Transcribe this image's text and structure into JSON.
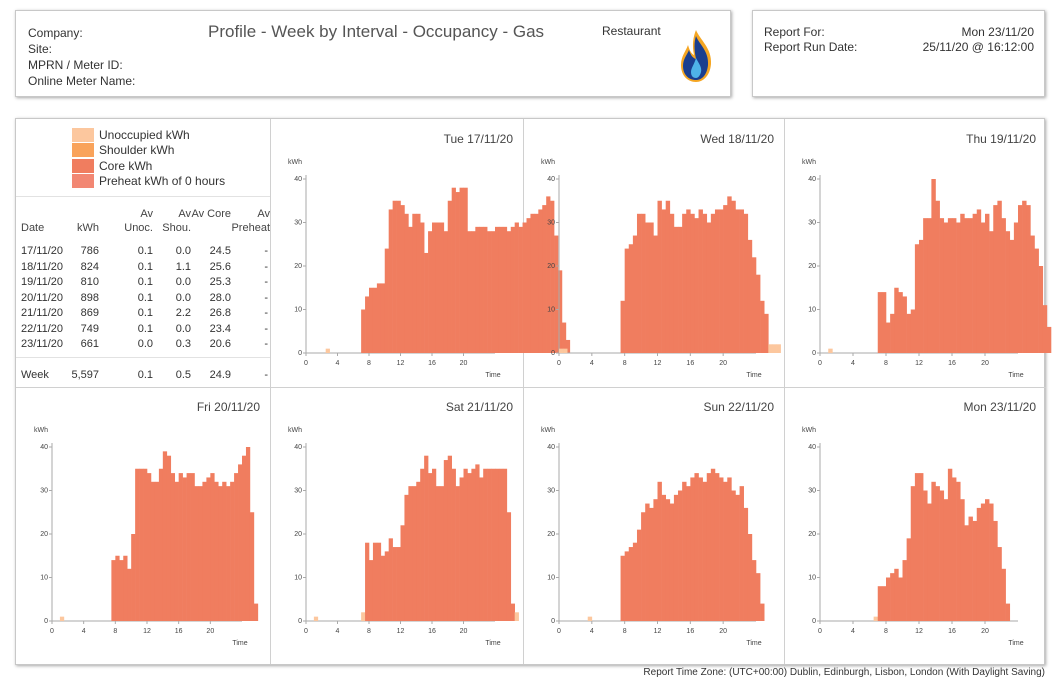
{
  "header": {
    "company_label": "Company:",
    "site_label": "Site:",
    "mprn_label": "MPRN / Meter ID:",
    "online_name_label": "Online Meter Name:",
    "title": "Profile - Week by Interval - Occupancy - Gas",
    "site_type": "Restaurant",
    "logo_icon": "gas-flame-icon"
  },
  "report_info": {
    "report_for_label": "Report For:",
    "report_for_value": "Mon 23/11/20",
    "run_date_label": "Report Run Date:",
    "run_date_value": "25/11/20 @ 16:12:00"
  },
  "legend": [
    {
      "label": "Unoccupied kWh",
      "color": "#fcc79e"
    },
    {
      "label": "Shoulder kWh",
      "color": "#f9a35b"
    },
    {
      "label": "Core kWh",
      "color": "#f07d5f"
    },
    {
      "label": "Preheat kWh of 0 hours",
      "color": "#f28773"
    }
  ],
  "table": {
    "headers": [
      "Date",
      "kWh",
      "Av Unoc.",
      "Av Shou.",
      "Av Core",
      "Av Preheat"
    ],
    "rows": [
      [
        "17/11/20",
        "786",
        "0.1",
        "0.0",
        "24.5",
        "-"
      ],
      [
        "18/11/20",
        "824",
        "0.1",
        "1.1",
        "25.6",
        "-"
      ],
      [
        "19/11/20",
        "810",
        "0.1",
        "0.0",
        "25.3",
        "-"
      ],
      [
        "20/11/20",
        "898",
        "0.1",
        "0.0",
        "28.0",
        "-"
      ],
      [
        "21/11/20",
        "869",
        "0.1",
        "2.2",
        "26.8",
        "-"
      ],
      [
        "22/11/20",
        "749",
        "0.1",
        "0.0",
        "23.4",
        "-"
      ],
      [
        "23/11/20",
        "661",
        "0.0",
        "0.3",
        "20.6",
        "-"
      ]
    ],
    "total": [
      "Week",
      "5,597",
      "0.1",
      "0.5",
      "24.9",
      "-"
    ]
  },
  "colors": {
    "unoccupied": "#fcc79e",
    "shoulder": "#f9a35b",
    "core": "#f07d5f",
    "axis": "#aaaaaa"
  },
  "chart_data": [
    {
      "type": "bar",
      "title": "Tue 17/11/20",
      "ylabel": "kWh",
      "xlabel": "Time",
      "ylim": [
        0,
        40
      ],
      "yticks": [
        0,
        10,
        20,
        30,
        40
      ],
      "xticks": [
        0,
        4,
        8,
        12,
        16,
        20
      ],
      "xlim": [
        0,
        24
      ],
      "values": [
        0,
        0,
        0,
        0,
        0,
        1,
        0,
        0,
        0,
        0,
        0,
        0,
        0,
        0,
        10,
        13,
        15,
        15,
        16,
        16,
        24,
        33,
        35,
        35,
        34,
        32,
        29,
        32,
        32,
        30,
        23,
        28,
        30,
        30,
        30,
        28,
        35,
        38,
        37,
        38,
        38,
        28,
        28,
        29,
        29,
        29,
        28,
        28,
        29,
        29,
        29,
        28,
        29,
        30,
        29,
        30,
        31,
        32,
        32,
        33,
        34,
        36,
        35,
        27,
        19,
        7,
        3
      ],
      "x_values_hours": "30-minute intervals from 00:00",
      "unoccupied": [
        0,
        0,
        0,
        0,
        0,
        1,
        0,
        0,
        0,
        0,
        0,
        0,
        0,
        0,
        0,
        0,
        0,
        0,
        0,
        0,
        0,
        0,
        0,
        0,
        0,
        0,
        0,
        0,
        0,
        0,
        0,
        0,
        0,
        0,
        0,
        0,
        0,
        0,
        0,
        0,
        0,
        0,
        0,
        0,
        0,
        0,
        0,
        0,
        0,
        0,
        0,
        0,
        0,
        0,
        0,
        0,
        0,
        0,
        0,
        0,
        0,
        0,
        0,
        0,
        0,
        0,
        0
      ]
    },
    {
      "type": "bar",
      "title": "Wed 18/11/20",
      "ylabel": "kWh",
      "xlabel": "Time",
      "ylim": [
        0,
        40
      ],
      "yticks": [
        0,
        10,
        20,
        30,
        40
      ],
      "xticks": [
        0,
        4,
        8,
        12,
        16,
        20
      ],
      "xlim": [
        0,
        24
      ],
      "values": [
        1,
        1,
        0,
        0,
        0,
        0,
        0,
        0,
        0,
        0,
        0,
        0,
        0,
        0,
        0,
        12,
        24,
        25,
        27,
        32,
        32,
        30,
        30,
        27,
        35,
        33,
        35,
        32,
        29,
        29,
        32,
        33,
        32,
        31,
        33,
        32,
        30,
        32,
        33,
        33,
        34,
        36,
        35,
        33,
        33,
        32,
        26,
        22,
        18,
        12,
        9,
        2,
        2,
        2
      ]
    },
    {
      "type": "bar",
      "title": "Thu 19/11/20",
      "ylabel": "kWh",
      "xlabel": "Time",
      "ylim": [
        0,
        40
      ],
      "yticks": [
        0,
        10,
        20,
        30,
        40
      ],
      "xticks": [
        0,
        4,
        8,
        12,
        16,
        20
      ],
      "xlim": [
        0,
        24
      ],
      "values": [
        0,
        0,
        1,
        0,
        0,
        0,
        0,
        0,
        0,
        0,
        0,
        0,
        0,
        0,
        14,
        14,
        7,
        9,
        15,
        14,
        13,
        9,
        10,
        25,
        26,
        31,
        31,
        40,
        35,
        31,
        30,
        31,
        31,
        30,
        32,
        31,
        31,
        32,
        33,
        30,
        32,
        28,
        34,
        35,
        31,
        28,
        26,
        30,
        34,
        35,
        34,
        27,
        24,
        20,
        11,
        6
      ]
    },
    {
      "type": "bar",
      "title": "Fri 20/11/20",
      "ylabel": "kWh",
      "xlabel": "Time",
      "ylim": [
        0,
        40
      ],
      "yticks": [
        0,
        10,
        20,
        30,
        40
      ],
      "xticks": [
        0,
        4,
        8,
        12,
        16,
        20
      ],
      "xlim": [
        0,
        24
      ],
      "values": [
        0,
        0,
        1,
        0,
        0,
        0,
        0,
        0,
        0,
        0,
        0,
        0,
        0,
        0,
        0,
        14,
        15,
        14,
        15,
        12,
        20,
        35,
        35,
        35,
        34,
        32,
        32,
        35,
        39,
        38,
        34,
        32,
        34,
        33,
        34,
        34,
        31,
        31,
        32,
        33,
        34,
        32,
        31,
        32,
        31,
        32,
        34,
        36,
        38,
        40,
        25,
        4
      ]
    },
    {
      "type": "bar",
      "title": "Sat 21/11/20",
      "ylabel": "kWh",
      "xlabel": "Time",
      "ylim": [
        0,
        40
      ],
      "yticks": [
        0,
        10,
        20,
        30,
        40
      ],
      "xticks": [
        0,
        4,
        8,
        12,
        16,
        20
      ],
      "xlim": [
        0,
        24
      ],
      "values": [
        0,
        0,
        1,
        0,
        0,
        0,
        0,
        0,
        0,
        0,
        0,
        0,
        0,
        0,
        2,
        18,
        14,
        18,
        18,
        15,
        16,
        19,
        17,
        17,
        22,
        29,
        31,
        31,
        32,
        35,
        38,
        34,
        35,
        31,
        31,
        37,
        38,
        35,
        31,
        33,
        35,
        34,
        35,
        36,
        33,
        35,
        35,
        35,
        35,
        35,
        35,
        25,
        4,
        2
      ]
    },
    {
      "type": "bar",
      "title": "Sun 22/11/20",
      "ylabel": "kWh",
      "xlabel": "Time",
      "ylim": [
        0,
        40
      ],
      "yticks": [
        0,
        10,
        20,
        30,
        40
      ],
      "xticks": [
        0,
        4,
        8,
        12,
        16,
        20
      ],
      "xlim": [
        0,
        24
      ],
      "values": [
        0,
        0,
        0,
        0,
        0,
        0,
        0,
        1,
        0,
        0,
        0,
        0,
        0,
        0,
        0,
        15,
        16,
        17,
        18,
        21,
        25,
        27,
        26,
        28,
        32,
        29,
        28,
        27,
        29,
        30,
        32,
        31,
        33,
        34,
        33,
        32,
        34,
        35,
        34,
        33,
        32,
        33,
        30,
        29,
        31,
        26,
        20,
        14,
        11,
        4
      ]
    },
    {
      "type": "bar",
      "title": "Mon 23/11/20",
      "ylabel": "kWh",
      "xlabel": "Time",
      "ylim": [
        0,
        40
      ],
      "yticks": [
        0,
        10,
        20,
        30,
        40
      ],
      "xticks": [
        0,
        4,
        8,
        12,
        16,
        20
      ],
      "xlim": [
        0,
        24
      ],
      "values": [
        0,
        0,
        0,
        0,
        0,
        0,
        0,
        0,
        0,
        0,
        0,
        0,
        0,
        1,
        8,
        8,
        10,
        11,
        12,
        10,
        14,
        19,
        31,
        34,
        34,
        30,
        27,
        32,
        31,
        30,
        28,
        35,
        33,
        32,
        28,
        22,
        24,
        23,
        26,
        27,
        28,
        27,
        23,
        17,
        12,
        4
      ]
    }
  ],
  "footer": "Report Time Zone: (UTC+00:00) Dublin, Edinburgh, Lisbon, London (With Daylight Saving)"
}
